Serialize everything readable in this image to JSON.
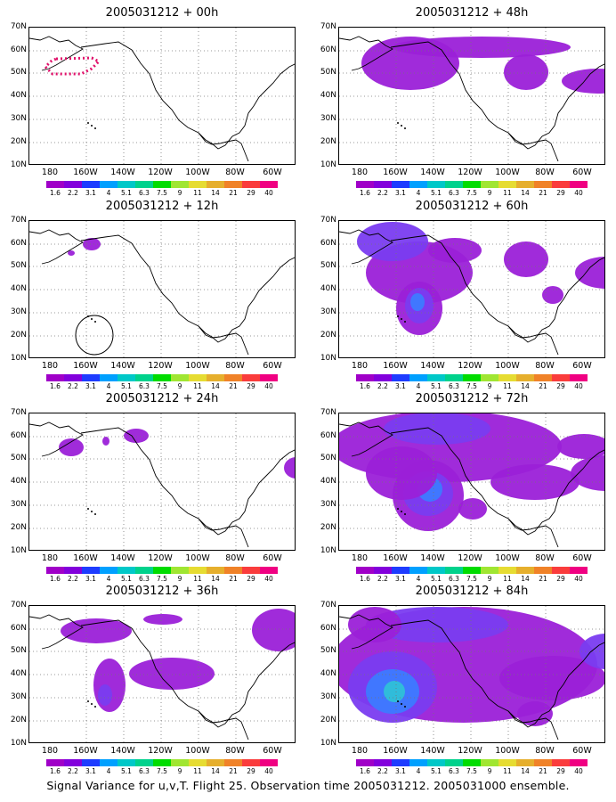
{
  "caption": "Signal Variance for u,v,T. Flight 25. Observation time 2005031212. 2005031000 ensemble.",
  "panels": [
    {
      "title": "2005031212 + 00h",
      "blobs": [],
      "track": true,
      "circle": false
    },
    {
      "title": "2005031212 + 12h",
      "blobs": [
        [
          [
            70,
            273
          ],
          10,
          7,
          1
        ],
        [
          [
            47,
            283
          ],
          4,
          3,
          1
        ],
        [
          [
            304,
            259
          ],
          3,
          3,
          1
        ]
      ],
      "track": false,
      "circle": true
    },
    {
      "title": "2005031212 + 24h",
      "blobs": [
        [
          [
            47,
            501
          ],
          14,
          10,
          1
        ],
        [
          [
            86,
            494
          ],
          4,
          5,
          1
        ],
        [
          [
            120,
            488
          ],
          14,
          8,
          1
        ],
        [
          [
            300,
            524
          ],
          14,
          12,
          1
        ]
      ],
      "track": false,
      "circle": false
    },
    {
      "title": "2005031212 + 36h",
      "blobs": [
        [
          [
            75,
            707
          ],
          40,
          14,
          1
        ],
        [
          [
            150,
            694
          ],
          22,
          6,
          1
        ],
        [
          [
            160,
            755
          ],
          48,
          18,
          1
        ],
        [
          [
            90,
            768
          ],
          18,
          30,
          1
        ],
        [
          [
            85,
            779
          ],
          8,
          12,
          2
        ],
        [
          [
            280,
            706
          ],
          30,
          24,
          1
        ]
      ],
      "track": false,
      "circle": false
    },
    {
      "title": "2005031212 + 48h",
      "blobs": [
        [
          [
            80,
            70
          ],
          55,
          30,
          1
        ],
        [
          [
            160,
            52
          ],
          100,
          12,
          1
        ],
        [
          [
            210,
            80
          ],
          25,
          20,
          1
        ],
        [
          [
            290,
            90
          ],
          40,
          14,
          1
        ],
        [
          [
            430,
            120
          ],
          18,
          35,
          1
        ],
        [
          [
            428,
            118
          ],
          10,
          20,
          2
        ]
      ],
      "track": false,
      "circle": false
    },
    {
      "title": "2005031212 + 60h",
      "blobs": [
        [
          [
            90,
            305
          ],
          60,
          35,
          1
        ],
        [
          [
            60,
            270
          ],
          40,
          22,
          2
        ],
        [
          [
            210,
            290
          ],
          25,
          20,
          1
        ],
        [
          [
            300,
            305
          ],
          35,
          18,
          1
        ],
        [
          [
            130,
            280
          ],
          30,
          14,
          1
        ],
        [
          [
            90,
            345
          ],
          26,
          30,
          1
        ],
        [
          [
            90,
            342
          ],
          16,
          20,
          2
        ],
        [
          [
            88,
            338
          ],
          8,
          10,
          3
        ],
        [
          [
            240,
            330
          ],
          12,
          10,
          1
        ]
      ],
      "track": false,
      "circle": false
    },
    {
      "title": "2005031212 + 72h",
      "blobs": [
        [
          [
            120,
            500
          ],
          130,
          40,
          1
        ],
        [
          [
            110,
            480
          ],
          60,
          18,
          2
        ],
        [
          [
            100,
            555
          ],
          40,
          40,
          1
        ],
        [
          [
            100,
            553
          ],
          28,
          25,
          2
        ],
        [
          [
            102,
            548
          ],
          14,
          14,
          3
        ],
        [
          [
            220,
            540
          ],
          50,
          20,
          1
        ],
        [
          [
            300,
            530
          ],
          40,
          20,
          1
        ],
        [
          [
            275,
            500
          ],
          30,
          14,
          1
        ],
        [
          [
            70,
            530
          ],
          40,
          30,
          1
        ],
        [
          [
            150,
            570
          ],
          16,
          12,
          1
        ]
      ],
      "track": false,
      "circle": false
    },
    {
      "title": "2005031212 + 84h",
      "blobs": [
        [
          [
            140,
            745
          ],
          150,
          65,
          1
        ],
        [
          [
            110,
            700
          ],
          80,
          20,
          2
        ],
        [
          [
            40,
            700
          ],
          30,
          20,
          1
        ],
        [
          [
            60,
            770
          ],
          50,
          40,
          2
        ],
        [
          [
            60,
            775
          ],
          30,
          25,
          3
        ],
        [
          [
            62,
            775
          ],
          12,
          12,
          4
        ],
        [
          [
            240,
            760
          ],
          60,
          25,
          1
        ],
        [
          [
            300,
            730
          ],
          30,
          20,
          2
        ],
        [
          [
            220,
            800
          ],
          20,
          14,
          1
        ]
      ],
      "track": false,
      "circle": false
    }
  ],
  "yticks": [
    "70N",
    "60N",
    "50N",
    "40N",
    "30N",
    "20N",
    "10N"
  ],
  "xticks": [
    "180",
    "160W",
    "140W",
    "120W",
    "100W",
    "80W",
    "60W"
  ],
  "colorbar": {
    "labels": [
      "1.6",
      "2.2",
      "3.1",
      "4",
      "5.1",
      "6.3",
      "7.5",
      "9",
      "11",
      "14",
      "21",
      "29",
      "40"
    ],
    "colors": [
      "#a000c8",
      "#8200dc",
      "#1e3cff",
      "#00a0ff",
      "#00c8c8",
      "#00d28c",
      "#00dc00",
      "#a0e632",
      "#e6dc32",
      "#e6af2d",
      "#f08228",
      "#fa3c3c",
      "#f00082"
    ]
  }
}
